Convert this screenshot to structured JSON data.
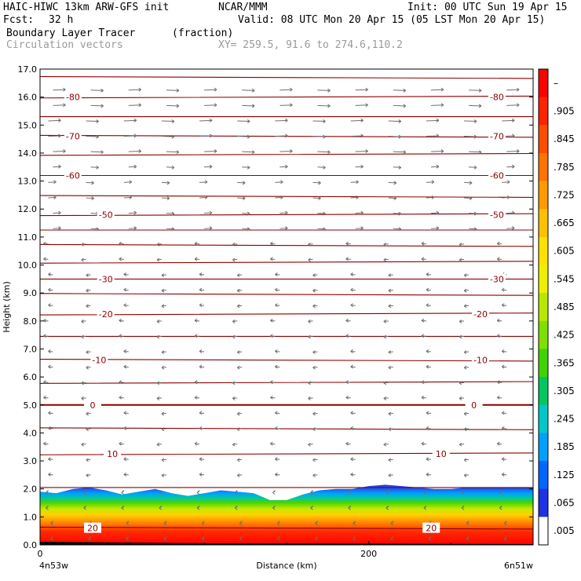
{
  "header": {
    "title_left": "HAIC-HIWC 13km ARW-GFS init",
    "org": "NCAR/MMM",
    "init": "Init: 00 UTC Sun 19 Apr 15",
    "fcst_label": "Fcst:",
    "fcst_value": "32 h",
    "valid": "Valid: 08 UTC Mon 20 Apr 15 (05 LST Mon 20 Apr 15)",
    "field_name": "Boundary Layer Tracer",
    "field_unit": "(fraction)",
    "vectors_label": "Circulation vectors",
    "xy_range": "XY= 259.5, 91.6 to 274.6,110.2"
  },
  "chart_data": {
    "type": "heatmap",
    "ylabel": "Height (km)",
    "xlabel": "Distance (km)",
    "ylim": [
      0,
      17
    ],
    "xlim": [
      0,
      300
    ],
    "y_ticks": [
      "0.0",
      "1.0",
      "2.0",
      "3.0",
      "4.0",
      "5.0",
      "6.0",
      "7.0",
      "8.0",
      "9.0",
      "10.0",
      "11.0",
      "12.0",
      "13.0",
      "14.0",
      "15.0",
      "16.0",
      "17.0"
    ],
    "x_ticks": [
      "0",
      "200"
    ],
    "x_left_label": "4n53w",
    "x_right_label": "6n51w",
    "colorbar_labels": [
      "–",
      ".905",
      ".845",
      ".785",
      ".725",
      ".665",
      ".605",
      ".545",
      ".485",
      ".425",
      ".365",
      ".305",
      ".245",
      ".185",
      ".125",
      ".065",
      ".005"
    ],
    "colorbar_colors": [
      "#ff0000",
      "#ff2400",
      "#ff4d00",
      "#ff7300",
      "#ff9900",
      "#ffc000",
      "#ffe000",
      "#eef000",
      "#b8e800",
      "#7ee000",
      "#3fd400",
      "#00c860",
      "#00c8c8",
      "#00a0ff",
      "#0066ff",
      "#1e32e6",
      "#ffffff"
    ],
    "contour_labels": [
      {
        "value": "-80",
        "km": 16.0,
        "x_left": 20,
        "x_right": 278
      },
      {
        "value": "-70",
        "km": 14.6,
        "x_left": 20,
        "x_right": 278
      },
      {
        "value": "-60",
        "km": 13.2,
        "x_left": 20,
        "x_right": 278
      },
      {
        "value": "-50",
        "km": 11.8,
        "x_left": 40,
        "x_right": 278
      },
      {
        "value": "-30",
        "km": 9.5,
        "x_left": 40,
        "x_right": 278
      },
      {
        "value": "-20",
        "km": 8.25,
        "x_left": 40,
        "x_right": 268
      },
      {
        "value": "-10",
        "km": 6.6,
        "x_left": 36,
        "x_right": 268
      },
      {
        "value": "0",
        "km": 5.0,
        "x_left": 32,
        "x_right": 264
      },
      {
        "value": "10",
        "km": 3.25,
        "x_left": 44,
        "x_right": 244
      },
      {
        "value": "20",
        "km": 0.6,
        "x_left": 32,
        "x_right": 238
      }
    ],
    "contour_levels_km": [
      0.6,
      2.05,
      3.25,
      4.15,
      5.0,
      5.8,
      6.6,
      7.45,
      8.25,
      8.95,
      9.5,
      10.1,
      10.7,
      11.25,
      11.8,
      12.45,
      13.2,
      13.95,
      14.6,
      15.3,
      16.0,
      16.7
    ],
    "tracer_top_km": [
      1.9,
      1.85,
      2.0,
      2.05,
      1.95,
      1.8,
      1.9,
      2.0,
      1.85,
      1.75,
      1.85,
      1.95,
      1.9,
      1.85,
      1.6,
      1.6,
      1.8,
      1.95,
      2.0,
      2.0,
      2.1,
      2.15,
      2.1,
      2.05,
      2.0,
      2.0,
      2.05,
      2.05,
      2.05,
      2.05,
      2.05
    ],
    "vector_direction": "westerly aloft, easterly below 11 km"
  }
}
